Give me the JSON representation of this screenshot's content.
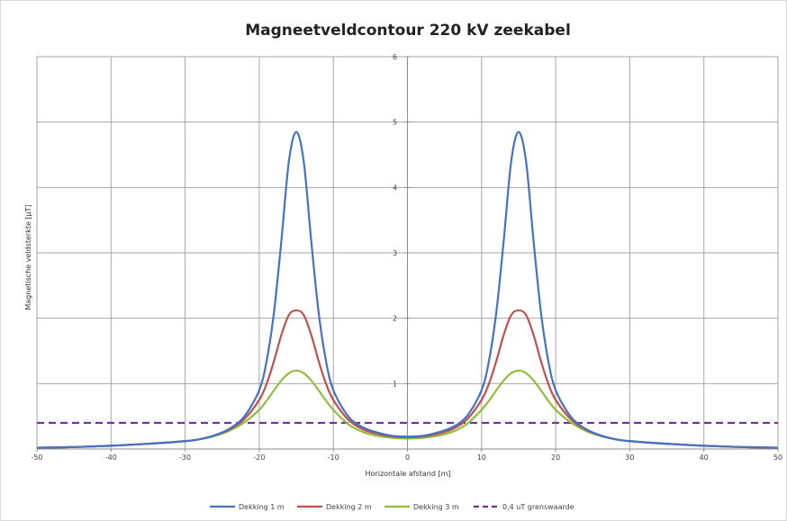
{
  "chart_data": {
    "type": "line",
    "title": "Magneetveldcontour 220 kV zeekabel",
    "xlabel": "Horizontale afstand [m]",
    "ylabel": "Magnetische veldsterkte [µT]",
    "xlim": [
      -50,
      50
    ],
    "ylim": [
      0,
      6
    ],
    "x_ticks": [
      "-50",
      "-40",
      "-30",
      "-20",
      "-10",
      "0",
      "10",
      "20",
      "30",
      "40",
      "50"
    ],
    "y_ticks": [
      "1",
      "2",
      "3",
      "4",
      "5",
      "6"
    ],
    "grid": true,
    "legend_position": "bottom",
    "x": [
      -50,
      -45,
      -40,
      -35,
      -30,
      -28,
      -26,
      -24,
      -22,
      -20,
      -19,
      -18,
      -17,
      -16,
      -15,
      -14,
      -13,
      -12,
      -11,
      -10,
      -8,
      -6,
      -4,
      -2,
      0,
      2,
      4,
      6,
      8,
      10,
      11,
      12,
      13,
      14,
      15,
      16,
      17,
      18,
      19,
      20,
      22,
      24,
      26,
      28,
      30,
      35,
      40,
      45,
      50
    ],
    "series": [
      {
        "name": "Dekking 1 m",
        "color": "#4472c4",
        "style": "solid",
        "values": [
          0.02,
          0.03,
          0.05,
          0.08,
          0.12,
          0.15,
          0.21,
          0.31,
          0.5,
          0.9,
          1.35,
          2.1,
          3.2,
          4.4,
          4.85,
          4.4,
          3.2,
          2.1,
          1.35,
          0.9,
          0.5,
          0.33,
          0.25,
          0.2,
          0.19,
          0.2,
          0.25,
          0.33,
          0.5,
          0.9,
          1.35,
          2.1,
          3.2,
          4.4,
          4.85,
          4.4,
          3.2,
          2.1,
          1.35,
          0.9,
          0.5,
          0.31,
          0.21,
          0.15,
          0.12,
          0.08,
          0.05,
          0.03,
          0.02
        ]
      },
      {
        "name": "Dekking 2 m",
        "color": "#c0504d",
        "style": "solid",
        "values": [
          0.02,
          0.03,
          0.05,
          0.08,
          0.12,
          0.15,
          0.21,
          0.3,
          0.46,
          0.75,
          1.0,
          1.35,
          1.75,
          2.05,
          2.12,
          2.05,
          1.75,
          1.35,
          1.0,
          0.75,
          0.45,
          0.3,
          0.23,
          0.19,
          0.18,
          0.19,
          0.23,
          0.3,
          0.45,
          0.75,
          1.0,
          1.35,
          1.75,
          2.05,
          2.12,
          2.05,
          1.75,
          1.35,
          1.0,
          0.75,
          0.46,
          0.3,
          0.21,
          0.15,
          0.12,
          0.08,
          0.05,
          0.03,
          0.02
        ]
      },
      {
        "name": "Dekking 3 m",
        "color": "#8fbe3c",
        "style": "solid",
        "values": [
          0.02,
          0.03,
          0.05,
          0.08,
          0.12,
          0.15,
          0.2,
          0.28,
          0.41,
          0.6,
          0.74,
          0.9,
          1.05,
          1.16,
          1.2,
          1.16,
          1.05,
          0.9,
          0.74,
          0.6,
          0.38,
          0.26,
          0.2,
          0.17,
          0.16,
          0.17,
          0.2,
          0.26,
          0.38,
          0.6,
          0.74,
          0.9,
          1.05,
          1.16,
          1.2,
          1.16,
          1.05,
          0.9,
          0.74,
          0.6,
          0.41,
          0.28,
          0.2,
          0.15,
          0.12,
          0.08,
          0.05,
          0.03,
          0.02
        ]
      },
      {
        "name": "0,4 uT grenswaarde",
        "color": "#7030a0",
        "style": "dashed",
        "constant": 0.4
      }
    ]
  }
}
